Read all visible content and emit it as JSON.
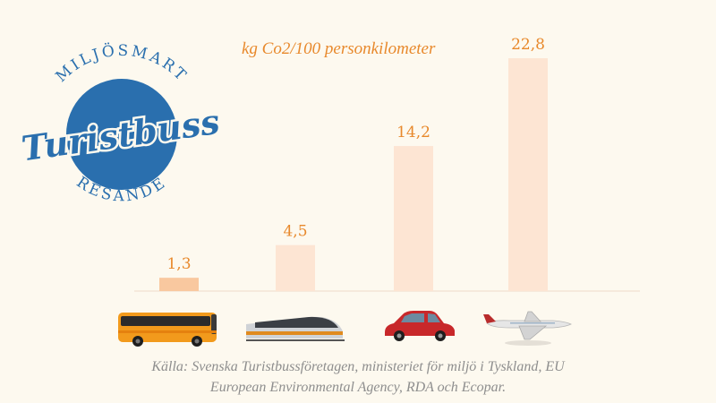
{
  "logo": {
    "top_text": "MILJÖSMART",
    "script_text": "Turistbuss",
    "bottom_text": "RESANDE",
    "color": "#2a6fae"
  },
  "chart_data": {
    "type": "bar",
    "title": "kg Co2/100 personkilometer",
    "categories": [
      "bus-icon",
      "train-icon",
      "car-icon",
      "airplane-icon"
    ],
    "values": [
      1.3,
      4.5,
      14.2,
      22.8
    ],
    "value_labels": [
      "1,3",
      "4,5",
      "14,2",
      "22,8"
    ],
    "bar_colors": [
      "#f9c89f",
      "#fde5d3",
      "#fde5d3",
      "#fde5d3"
    ],
    "label_color": "#e8892c",
    "ylim": [
      0,
      22.8
    ],
    "grid": false,
    "xlabel": "",
    "ylabel": ""
  },
  "source": {
    "line1": "Källa: Svenska Turistbussföretagen, ministeriet för miljö i Tyskland, EU",
    "line2": "European Environmental Agency, RDA och Ecopar."
  }
}
